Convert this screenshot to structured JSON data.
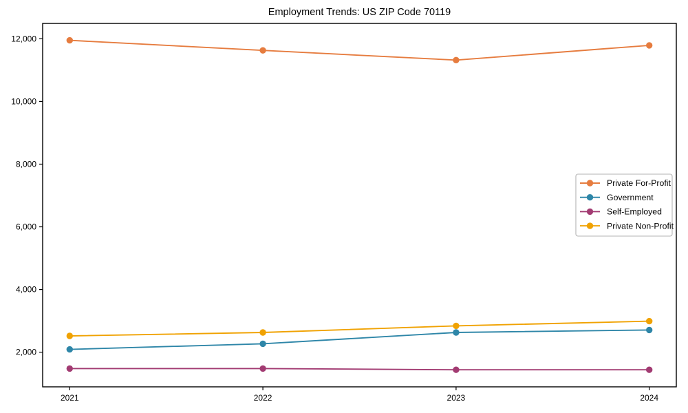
{
  "title": "Employment Trends: US ZIP Code 70119",
  "chart_data": {
    "type": "line",
    "title": "Employment Trends: US ZIP Code 70119",
    "xlabel": "",
    "ylabel": "",
    "x": [
      2021,
      2022,
      2023,
      2024
    ],
    "xtick_labels": [
      "2021",
      "2022",
      "2023",
      "2024"
    ],
    "yticks": [
      2000,
      4000,
      6000,
      8000,
      10000,
      12000
    ],
    "ytick_labels": [
      "2,000",
      "4,000",
      "6,000",
      "8,000",
      "10,000",
      "12,000"
    ],
    "xlim": [
      2020.86,
      2024.14
    ],
    "ylim": [
      895,
      12490
    ],
    "grid": false,
    "marker": "o",
    "legend_position": "center right",
    "series": [
      {
        "name": "Private For-Profit",
        "color": "#E67C3F",
        "values": [
          11950,
          11630,
          11320,
          11790
        ]
      },
      {
        "name": "Government",
        "color": "#2E86A8",
        "values": [
          2090,
          2270,
          2630,
          2710
        ]
      },
      {
        "name": "Self-Employed",
        "color": "#A23B72",
        "values": [
          1480,
          1480,
          1440,
          1440
        ]
      },
      {
        "name": "Private Non-Profit",
        "color": "#F0A202",
        "values": [
          2520,
          2630,
          2840,
          2990
        ]
      }
    ]
  },
  "colors": {
    "spine": "#000000",
    "legend_border": "#b3b3b3",
    "background": "#ffffff"
  }
}
